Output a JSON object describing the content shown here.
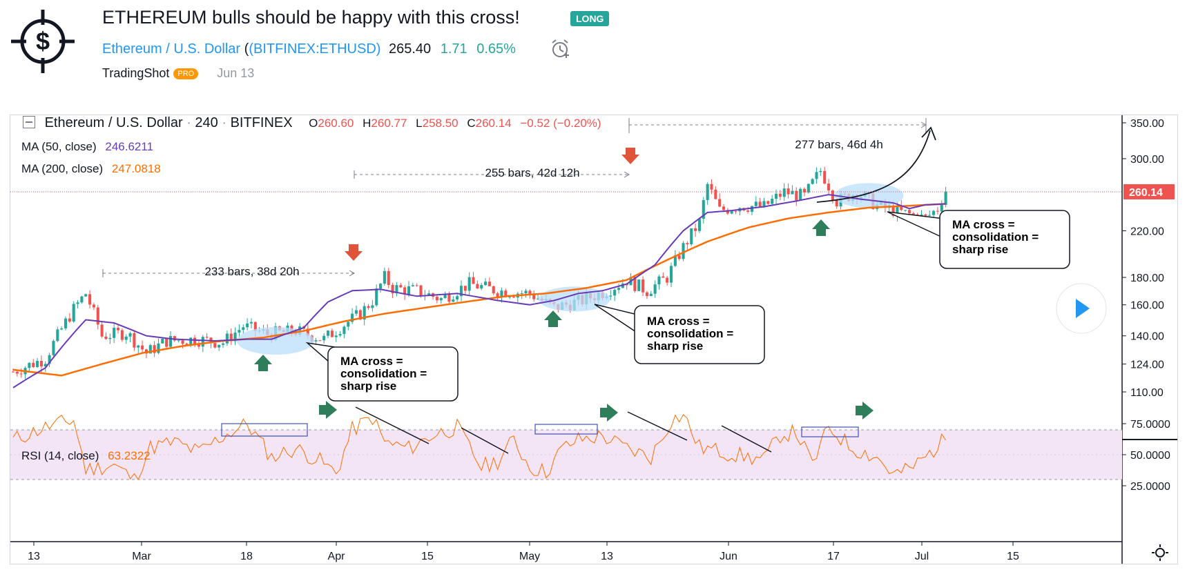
{
  "header": {
    "title": "ETHEREUM bulls should be happy with this cross!",
    "badge": "LONG",
    "symbol_name": "Ethereum / U.S. Dollar",
    "exchange": "(BITFINEX:ETHUSD)",
    "price": "265.40",
    "change": "1.71",
    "change_pct": "0.65%",
    "author": "TradingShot",
    "author_badge": "PRO",
    "date": "Jun 13",
    "icons": [
      "crosshair-dollar-logo",
      "alarm-clock-icon"
    ]
  },
  "legend": {
    "series_title": "Ethereum / U.S. Dollar",
    "interval": "240",
    "exchange": "BITFINEX",
    "o_label": "O",
    "o": "260.60",
    "h_label": "H",
    "h": "260.77",
    "l_label": "L",
    "l": "258.50",
    "c_label": "C",
    "c": "260.14",
    "change": "−0.52 (−0.20%)",
    "ma50_label": "MA (50, close)",
    "ma50": "246.6211",
    "ma200_label": "MA (200, close)",
    "ma200": "247.0818",
    "rsi_label": "RSI (14, close)",
    "rsi": "63.2322"
  },
  "colors": {
    "up": "#26a69a",
    "down": "#ef5350",
    "ma50": "#673ab7",
    "ma200": "#ff6d00",
    "rsi": "#ff6d00",
    "rsi_band": "#f3e5f5",
    "highlight": "#bbdefb",
    "arrow_up": "#2e7d5b",
    "arrow_down": "#e0553a"
  },
  "chart_data": [
    {
      "type": "candlestick",
      "scale": "log",
      "x_tick_labels": [
        "13",
        "Mar",
        "18",
        "Apr",
        "15",
        "May",
        "13",
        "Jun",
        "17",
        "Jul",
        "15"
      ],
      "y_ticks": [
        110,
        124,
        140,
        160,
        180,
        220,
        300,
        350
      ],
      "y_tick_labels": [
        "110.00",
        "124.00",
        "140.00",
        "160.00",
        "180.00",
        "220.00",
        "300.00",
        "350.00"
      ],
      "last_price_label": "260.14",
      "price_path": [
        [
          0,
          120
        ],
        [
          8,
          127
        ],
        [
          15,
          157
        ],
        [
          18,
          168
        ],
        [
          22,
          140
        ],
        [
          28,
          142
        ],
        [
          33,
          130
        ],
        [
          38,
          137
        ],
        [
          45,
          138
        ],
        [
          52,
          136
        ],
        [
          57,
          146
        ],
        [
          63,
          141
        ],
        [
          70,
          143
        ],
        [
          77,
          138
        ],
        [
          82,
          147
        ],
        [
          86,
          154
        ],
        [
          89,
          163
        ],
        [
          92,
          180
        ],
        [
          94,
          172
        ],
        [
          100,
          170
        ],
        [
          106,
          164
        ],
        [
          113,
          175
        ],
        [
          120,
          170
        ],
        [
          128,
          168
        ],
        [
          134,
          158
        ],
        [
          141,
          163
        ],
        [
          147,
          170
        ],
        [
          152,
          178
        ],
        [
          157,
          170
        ],
        [
          162,
          180
        ],
        [
          166,
          205
        ],
        [
          170,
          228
        ],
        [
          172,
          268
        ],
        [
          175,
          240
        ],
        [
          180,
          245
        ],
        [
          186,
          244
        ],
        [
          191,
          260
        ],
        [
          196,
          255
        ],
        [
          200,
          285
        ],
        [
          204,
          250
        ],
        [
          209,
          260
        ],
        [
          214,
          245
        ],
        [
          220,
          238
        ],
        [
          226,
          232
        ],
        [
          229,
          242
        ],
        [
          231,
          262
        ]
      ],
      "ma50_path": [
        [
          0,
          112
        ],
        [
          8,
          122
        ],
        [
          18,
          150
        ],
        [
          25,
          148
        ],
        [
          33,
          140
        ],
        [
          40,
          138
        ],
        [
          50,
          137
        ],
        [
          58,
          138
        ],
        [
          64,
          138
        ],
        [
          72,
          145
        ],
        [
          78,
          162
        ],
        [
          84,
          170
        ],
        [
          91,
          171
        ],
        [
          100,
          166
        ],
        [
          110,
          168
        ],
        [
          120,
          163
        ],
        [
          128,
          160
        ],
        [
          134,
          163
        ],
        [
          140,
          168
        ],
        [
          146,
          170
        ],
        [
          152,
          175
        ],
        [
          159,
          190
        ],
        [
          166,
          220
        ],
        [
          172,
          238
        ],
        [
          178,
          240
        ],
        [
          186,
          244
        ],
        [
          194,
          250
        ],
        [
          202,
          257
        ],
        [
          210,
          252
        ],
        [
          218,
          248
        ],
        [
          222,
          242
        ],
        [
          226,
          246
        ],
        [
          231,
          247
        ]
      ],
      "ma200_path": [
        [
          0,
          121
        ],
        [
          12,
          118
        ],
        [
          22,
          124
        ],
        [
          32,
          130
        ],
        [
          42,
          134
        ],
        [
          52,
          137
        ],
        [
          62,
          139
        ],
        [
          72,
          143
        ],
        [
          82,
          149
        ],
        [
          92,
          154
        ],
        [
          102,
          158
        ],
        [
          112,
          162
        ],
        [
          122,
          166
        ],
        [
          132,
          168
        ],
        [
          142,
          172
        ],
        [
          152,
          178
        ],
        [
          162,
          194
        ],
        [
          172,
          210
        ],
        [
          182,
          223
        ],
        [
          192,
          232
        ],
        [
          202,
          238
        ],
        [
          212,
          243
        ],
        [
          222,
          245
        ],
        [
          231,
          247
        ]
      ],
      "annotations": [
        {
          "label": "233 bars, 38d 20h"
        },
        {
          "label": "255 bars, 42d 12h"
        },
        {
          "label": "277 bars, 46d 4h"
        },
        {
          "label": "MA cross = consolidation = sharp rise",
          "lines": [
            "MA cross =",
            "consolidation =",
            "sharp rise"
          ]
        }
      ]
    },
    {
      "type": "line",
      "name": "RSI (14, close)",
      "y_ticks": [
        25,
        50,
        75
      ],
      "y_tick_labels": [
        "25.0000",
        "50.0000",
        "75.0000"
      ],
      "band": [
        30,
        70
      ],
      "rsi_path": [
        [
          0,
          62
        ],
        [
          8,
          72
        ],
        [
          15,
          78
        ],
        [
          18,
          38
        ],
        [
          25,
          42
        ],
        [
          30,
          30
        ],
        [
          34,
          56
        ],
        [
          40,
          60
        ],
        [
          46,
          52
        ],
        [
          52,
          65
        ],
        [
          58,
          75
        ],
        [
          64,
          48
        ],
        [
          70,
          55
        ],
        [
          76,
          45
        ],
        [
          80,
          35
        ],
        [
          84,
          70
        ],
        [
          89,
          80
        ],
        [
          92,
          60
        ],
        [
          98,
          55
        ],
        [
          104,
          66
        ],
        [
          110,
          72
        ],
        [
          116,
          40
        ],
        [
          120,
          45
        ],
        [
          124,
          62
        ],
        [
          128,
          40
        ],
        [
          132,
          36
        ],
        [
          136,
          55
        ],
        [
          140,
          62
        ],
        [
          146,
          65
        ],
        [
          152,
          55
        ],
        [
          158,
          48
        ],
        [
          163,
          78
        ],
        [
          166,
          82
        ],
        [
          170,
          56
        ],
        [
          176,
          52
        ],
        [
          182,
          48
        ],
        [
          186,
          46
        ],
        [
          190,
          66
        ],
        [
          194,
          68
        ],
        [
          198,
          42
        ],
        [
          202,
          72
        ],
        [
          208,
          55
        ],
        [
          214,
          48
        ],
        [
          218,
          34
        ],
        [
          222,
          38
        ],
        [
          226,
          48
        ],
        [
          231,
          63
        ]
      ]
    }
  ]
}
